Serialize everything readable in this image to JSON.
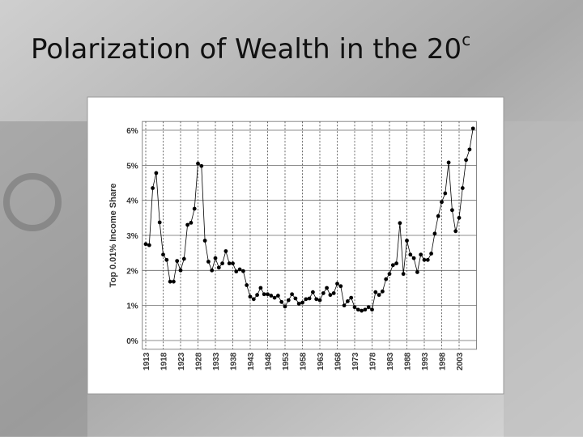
{
  "chart_data": {
    "type": "line",
    "title": "Polarization of Wealth in the 20",
    "title_superscript": "c",
    "y_label": "Top 0.01% Income Share",
    "color": "#000000",
    "grid": true,
    "x": [
      1913,
      1914,
      1915,
      1916,
      1917,
      1918,
      1919,
      1920,
      1921,
      1922,
      1923,
      1924,
      1925,
      1926,
      1927,
      1928,
      1929,
      1930,
      1931,
      1932,
      1933,
      1934,
      1935,
      1936,
      1937,
      1938,
      1939,
      1940,
      1941,
      1942,
      1943,
      1944,
      1945,
      1946,
      1947,
      1948,
      1949,
      1950,
      1951,
      1952,
      1953,
      1954,
      1955,
      1956,
      1957,
      1958,
      1959,
      1960,
      1961,
      1962,
      1963,
      1964,
      1965,
      1966,
      1967,
      1968,
      1969,
      1970,
      1971,
      1972,
      1973,
      1974,
      1975,
      1976,
      1977,
      1978,
      1979,
      1980,
      1981,
      1982,
      1983,
      1984,
      1985,
      1986,
      1987,
      1988,
      1989,
      1990,
      1991,
      1992,
      1993,
      1994,
      1995,
      1996,
      1997,
      1998,
      1999,
      2000,
      2001,
      2002,
      2003,
      2004,
      2005,
      2006,
      2007
    ],
    "values": [
      2.75,
      2.72,
      4.35,
      4.78,
      3.37,
      2.45,
      2.3,
      1.68,
      1.68,
      2.27,
      2.0,
      2.33,
      3.3,
      3.36,
      3.76,
      5.05,
      4.98,
      2.85,
      2.25,
      2.0,
      2.35,
      2.08,
      2.2,
      2.55,
      2.2,
      2.2,
      1.97,
      2.03,
      1.98,
      1.58,
      1.25,
      1.18,
      1.3,
      1.5,
      1.32,
      1.32,
      1.28,
      1.22,
      1.28,
      1.1,
      0.97,
      1.15,
      1.32,
      1.2,
      1.05,
      1.08,
      1.18,
      1.2,
      1.38,
      1.18,
      1.15,
      1.35,
      1.5,
      1.3,
      1.35,
      1.62,
      1.55,
      1.0,
      1.12,
      1.22,
      0.95,
      0.88,
      0.85,
      0.88,
      0.95,
      0.88,
      1.38,
      1.3,
      1.4,
      1.75,
      1.9,
      2.15,
      2.2,
      3.35,
      1.9,
      2.85,
      2.45,
      2.35,
      1.95,
      2.45,
      2.3,
      2.3,
      2.48,
      3.05,
      3.55,
      3.95,
      4.2,
      5.08,
      3.72,
      3.12,
      3.5,
      4.35,
      5.15,
      5.45,
      6.05
    ],
    "xlim": [
      1912,
      2008
    ],
    "xticks": [
      1913,
      1918,
      1923,
      1928,
      1933,
      1938,
      1943,
      1948,
      1953,
      1958,
      1963,
      1968,
      1973,
      1978,
      1983,
      1988,
      1993,
      1998,
      2003
    ],
    "ylim": [
      -0.25,
      6.25
    ],
    "yticks": [
      {
        "value": 0,
        "label": "0%"
      },
      {
        "value": 1,
        "label": "1%"
      },
      {
        "value": 2,
        "label": "2%"
      },
      {
        "value": 3,
        "label": "3%"
      },
      {
        "value": 4,
        "label": "4%"
      },
      {
        "value": 5,
        "label": "5%"
      },
      {
        "value": 6,
        "label": "6%"
      }
    ]
  }
}
